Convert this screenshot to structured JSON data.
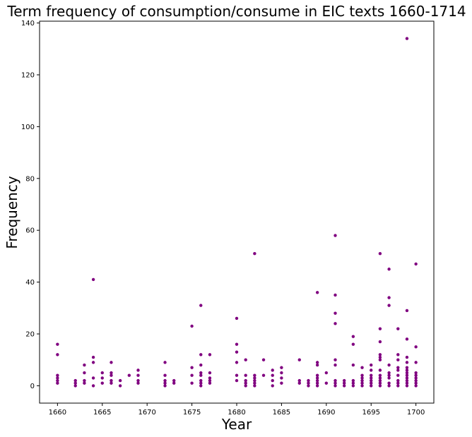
{
  "chart_data": {
    "type": "scatter",
    "title": "Term frequency of consumption/consume in EIC texts 1660-1714",
    "xlabel": "Year",
    "ylabel": "Frequency",
    "xlim": [
      1658,
      1702
    ],
    "ylim": [
      -6.7,
      140.7
    ],
    "xticks": [
      1660,
      1665,
      1670,
      1675,
      1680,
      1685,
      1690,
      1695,
      1700
    ],
    "yticks": [
      0,
      20,
      40,
      60,
      80,
      100,
      120,
      140
    ],
    "grid": false,
    "marker_color": "#800080",
    "points": [
      {
        "x": 1660,
        "y": 16
      },
      {
        "x": 1660,
        "y": 12
      },
      {
        "x": 1660,
        "y": 4
      },
      {
        "x": 1660,
        "y": 3
      },
      {
        "x": 1660,
        "y": 2
      },
      {
        "x": 1660,
        "y": 1
      },
      {
        "x": 1662,
        "y": 2
      },
      {
        "x": 1662,
        "y": 1
      },
      {
        "x": 1662,
        "y": 0
      },
      {
        "x": 1663,
        "y": 8
      },
      {
        "x": 1663,
        "y": 5
      },
      {
        "x": 1663,
        "y": 2
      },
      {
        "x": 1663,
        "y": 1
      },
      {
        "x": 1664,
        "y": 41
      },
      {
        "x": 1664,
        "y": 11
      },
      {
        "x": 1664,
        "y": 9
      },
      {
        "x": 1664,
        "y": 3
      },
      {
        "x": 1664,
        "y": 0
      },
      {
        "x": 1665,
        "y": 5
      },
      {
        "x": 1665,
        "y": 3
      },
      {
        "x": 1665,
        "y": 1
      },
      {
        "x": 1666,
        "y": 9
      },
      {
        "x": 1666,
        "y": 5
      },
      {
        "x": 1666,
        "y": 4
      },
      {
        "x": 1666,
        "y": 2
      },
      {
        "x": 1666,
        "y": 1
      },
      {
        "x": 1667,
        "y": 2
      },
      {
        "x": 1667,
        "y": 0
      },
      {
        "x": 1668,
        "y": 4
      },
      {
        "x": 1669,
        "y": 6
      },
      {
        "x": 1669,
        "y": 4
      },
      {
        "x": 1669,
        "y": 2
      },
      {
        "x": 1669,
        "y": 1
      },
      {
        "x": 1672,
        "y": 9
      },
      {
        "x": 1672,
        "y": 4
      },
      {
        "x": 1672,
        "y": 2
      },
      {
        "x": 1672,
        "y": 1
      },
      {
        "x": 1672,
        "y": 0
      },
      {
        "x": 1673,
        "y": 2
      },
      {
        "x": 1673,
        "y": 1
      },
      {
        "x": 1675,
        "y": 23
      },
      {
        "x": 1675,
        "y": 7
      },
      {
        "x": 1675,
        "y": 4
      },
      {
        "x": 1675,
        "y": 1
      },
      {
        "x": 1676,
        "y": 31
      },
      {
        "x": 1676,
        "y": 12
      },
      {
        "x": 1676,
        "y": 8
      },
      {
        "x": 1676,
        "y": 5
      },
      {
        "x": 1676,
        "y": 4
      },
      {
        "x": 1676,
        "y": 2
      },
      {
        "x": 1676,
        "y": 1
      },
      {
        "x": 1676,
        "y": 0
      },
      {
        "x": 1677,
        "y": 12
      },
      {
        "x": 1677,
        "y": 5
      },
      {
        "x": 1677,
        "y": 3
      },
      {
        "x": 1677,
        "y": 2
      },
      {
        "x": 1677,
        "y": 1
      },
      {
        "x": 1680,
        "y": 26
      },
      {
        "x": 1680,
        "y": 16
      },
      {
        "x": 1680,
        "y": 13
      },
      {
        "x": 1680,
        "y": 9
      },
      {
        "x": 1680,
        "y": 4
      },
      {
        "x": 1680,
        "y": 2
      },
      {
        "x": 1681,
        "y": 10
      },
      {
        "x": 1681,
        "y": 4
      },
      {
        "x": 1681,
        "y": 2
      },
      {
        "x": 1681,
        "y": 1
      },
      {
        "x": 1681,
        "y": 0
      },
      {
        "x": 1682,
        "y": 51
      },
      {
        "x": 1682,
        "y": 4
      },
      {
        "x": 1682,
        "y": 3
      },
      {
        "x": 1682,
        "y": 2
      },
      {
        "x": 1682,
        "y": 1
      },
      {
        "x": 1682,
        "y": 0
      },
      {
        "x": 1683,
        "y": 10
      },
      {
        "x": 1683,
        "y": 4
      },
      {
        "x": 1684,
        "y": 6
      },
      {
        "x": 1684,
        "y": 4
      },
      {
        "x": 1684,
        "y": 2
      },
      {
        "x": 1684,
        "y": 0
      },
      {
        "x": 1685,
        "y": 7
      },
      {
        "x": 1685,
        "y": 5
      },
      {
        "x": 1685,
        "y": 3
      },
      {
        "x": 1685,
        "y": 1
      },
      {
        "x": 1687,
        "y": 10
      },
      {
        "x": 1687,
        "y": 2
      },
      {
        "x": 1687,
        "y": 1
      },
      {
        "x": 1688,
        "y": 2
      },
      {
        "x": 1688,
        "y": 1
      },
      {
        "x": 1688,
        "y": 0
      },
      {
        "x": 1689,
        "y": 36
      },
      {
        "x": 1689,
        "y": 9
      },
      {
        "x": 1689,
        "y": 8
      },
      {
        "x": 1689,
        "y": 4
      },
      {
        "x": 1689,
        "y": 3
      },
      {
        "x": 1689,
        "y": 2
      },
      {
        "x": 1689,
        "y": 1
      },
      {
        "x": 1689,
        "y": 0
      },
      {
        "x": 1690,
        "y": 5
      },
      {
        "x": 1690,
        "y": 1
      },
      {
        "x": 1691,
        "y": 58
      },
      {
        "x": 1691,
        "y": 35
      },
      {
        "x": 1691,
        "y": 28
      },
      {
        "x": 1691,
        "y": 24
      },
      {
        "x": 1691,
        "y": 10
      },
      {
        "x": 1691,
        "y": 8
      },
      {
        "x": 1691,
        "y": 2
      },
      {
        "x": 1691,
        "y": 1
      },
      {
        "x": 1691,
        "y": 0
      },
      {
        "x": 1692,
        "y": 2
      },
      {
        "x": 1692,
        "y": 1
      },
      {
        "x": 1692,
        "y": 0
      },
      {
        "x": 1693,
        "y": 19
      },
      {
        "x": 1693,
        "y": 16
      },
      {
        "x": 1693,
        "y": 8
      },
      {
        "x": 1693,
        "y": 2
      },
      {
        "x": 1693,
        "y": 1
      },
      {
        "x": 1693,
        "y": 0
      },
      {
        "x": 1694,
        "y": 7
      },
      {
        "x": 1694,
        "y": 4
      },
      {
        "x": 1694,
        "y": 3
      },
      {
        "x": 1694,
        "y": 2
      },
      {
        "x": 1694,
        "y": 1
      },
      {
        "x": 1694,
        "y": 0
      },
      {
        "x": 1695,
        "y": 8
      },
      {
        "x": 1695,
        "y": 6
      },
      {
        "x": 1695,
        "y": 4
      },
      {
        "x": 1695,
        "y": 3
      },
      {
        "x": 1695,
        "y": 2
      },
      {
        "x": 1695,
        "y": 1
      },
      {
        "x": 1695,
        "y": 0
      },
      {
        "x": 1696,
        "y": 51
      },
      {
        "x": 1696,
        "y": 22
      },
      {
        "x": 1696,
        "y": 17
      },
      {
        "x": 1696,
        "y": 12
      },
      {
        "x": 1696,
        "y": 11
      },
      {
        "x": 1696,
        "y": 10
      },
      {
        "x": 1696,
        "y": 6
      },
      {
        "x": 1696,
        "y": 4
      },
      {
        "x": 1696,
        "y": 3
      },
      {
        "x": 1696,
        "y": 2
      },
      {
        "x": 1696,
        "y": 1
      },
      {
        "x": 1696,
        "y": 0
      },
      {
        "x": 1697,
        "y": 45
      },
      {
        "x": 1697,
        "y": 34
      },
      {
        "x": 1697,
        "y": 31
      },
      {
        "x": 1697,
        "y": 8
      },
      {
        "x": 1697,
        "y": 5
      },
      {
        "x": 1697,
        "y": 4
      },
      {
        "x": 1697,
        "y": 3
      },
      {
        "x": 1697,
        "y": 1
      },
      {
        "x": 1697,
        "y": 0
      },
      {
        "x": 1698,
        "y": 22
      },
      {
        "x": 1698,
        "y": 12
      },
      {
        "x": 1698,
        "y": 10
      },
      {
        "x": 1698,
        "y": 7
      },
      {
        "x": 1698,
        "y": 6
      },
      {
        "x": 1698,
        "y": 4
      },
      {
        "x": 1698,
        "y": 2
      },
      {
        "x": 1698,
        "y": 1
      },
      {
        "x": 1698,
        "y": 0
      },
      {
        "x": 1699,
        "y": 134
      },
      {
        "x": 1699,
        "y": 29
      },
      {
        "x": 1699,
        "y": 18
      },
      {
        "x": 1699,
        "y": 11
      },
      {
        "x": 1699,
        "y": 9
      },
      {
        "x": 1699,
        "y": 7
      },
      {
        "x": 1699,
        "y": 6
      },
      {
        "x": 1699,
        "y": 5
      },
      {
        "x": 1699,
        "y": 4
      },
      {
        "x": 1699,
        "y": 3
      },
      {
        "x": 1699,
        "y": 2
      },
      {
        "x": 1699,
        "y": 1
      },
      {
        "x": 1699,
        "y": 0
      },
      {
        "x": 1700,
        "y": 47
      },
      {
        "x": 1700,
        "y": 15
      },
      {
        "x": 1700,
        "y": 9
      },
      {
        "x": 1700,
        "y": 5
      },
      {
        "x": 1700,
        "y": 4
      },
      {
        "x": 1700,
        "y": 3
      },
      {
        "x": 1700,
        "y": 2
      },
      {
        "x": 1700,
        "y": 1
      },
      {
        "x": 1700,
        "y": 0
      }
    ]
  }
}
